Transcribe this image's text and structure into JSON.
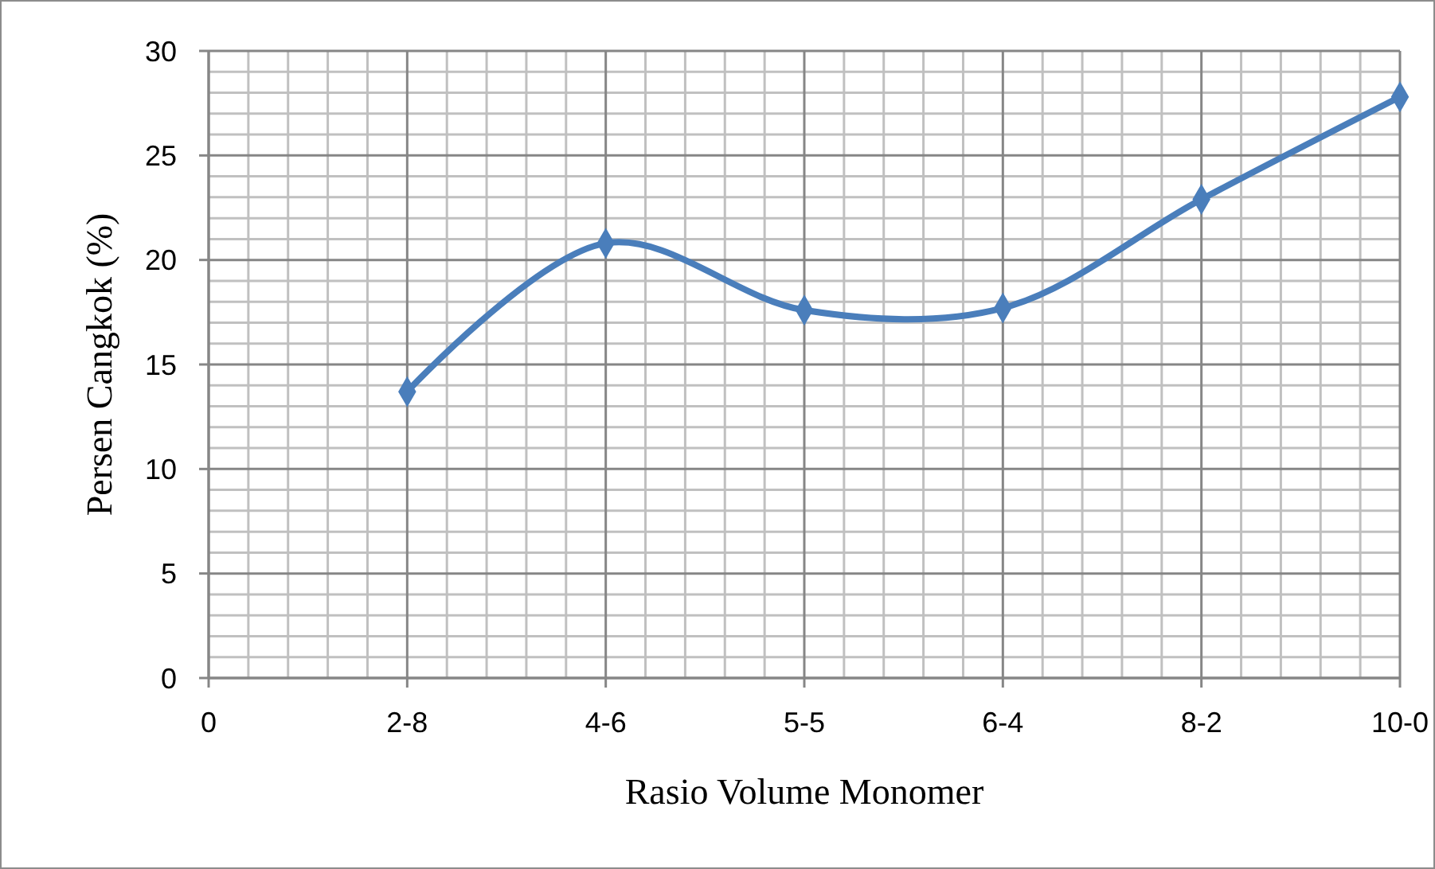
{
  "chart_data": {
    "type": "line",
    "xlabel": "Rasio Volume Monomer",
    "ylabel": "Persen Cangkok (%)",
    "categories": [
      "0",
      "2-8",
      "4-6",
      "5-5",
      "6-4",
      "8-2",
      "10-0"
    ],
    "ylim": [
      0,
      30
    ],
    "yticks": [
      0,
      5,
      10,
      15,
      20,
      25,
      30
    ],
    "series": [
      {
        "color": "#4a7ebb",
        "values": [
          null,
          13.7,
          20.8,
          17.6,
          17.7,
          22.9,
          27.8
        ]
      }
    ],
    "marker": "diamond",
    "line_style": "solid",
    "grid": true
  }
}
